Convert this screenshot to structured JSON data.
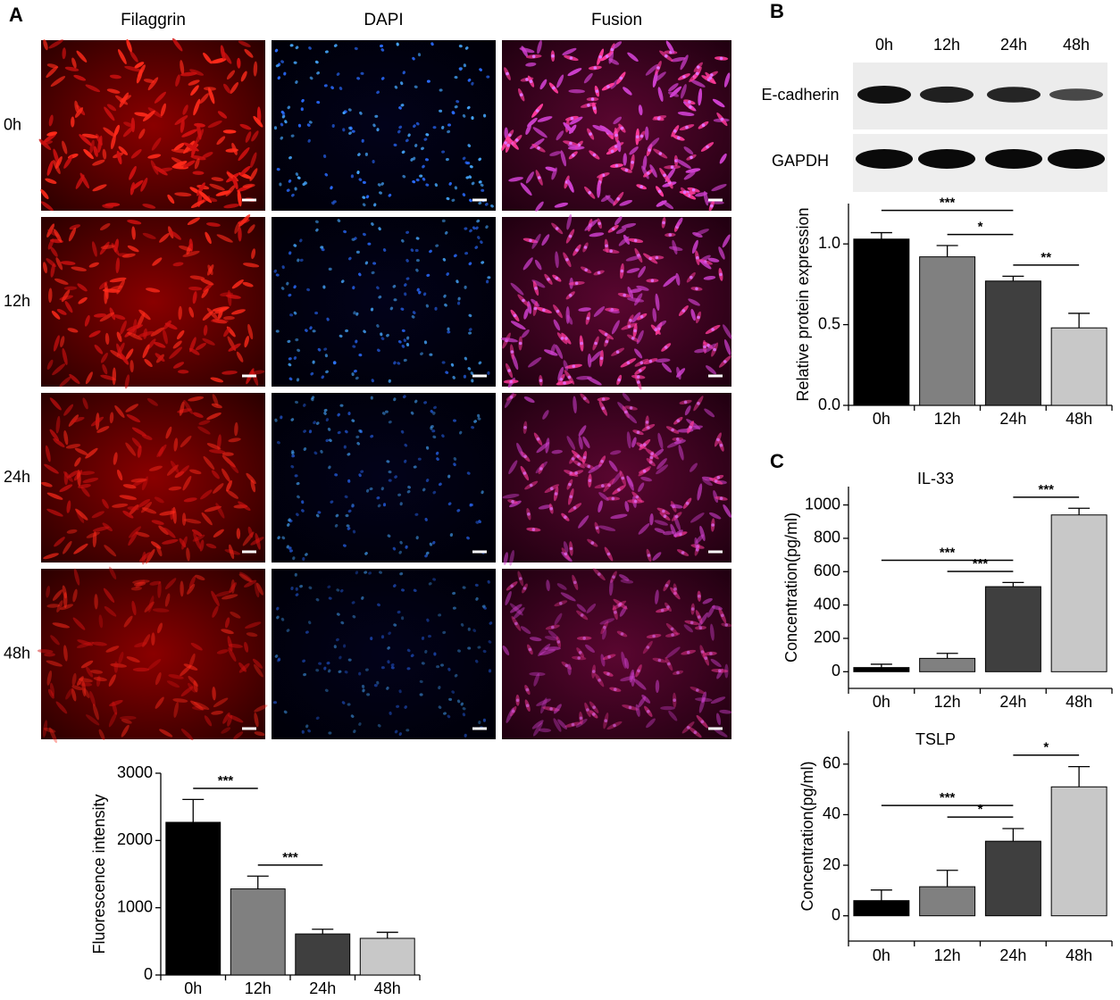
{
  "panel_labels": [
    "A",
    "B",
    "C"
  ],
  "micrographs": {
    "columns": [
      "Filaggrin",
      "DAPI",
      "Fusion"
    ],
    "rows": [
      "0h",
      "12h",
      "24h",
      "48h"
    ]
  },
  "blot": {
    "times": [
      "0h",
      "12h",
      "24h",
      "48h"
    ],
    "proteins": [
      "E-cadherin",
      "GAPDH"
    ]
  },
  "chart_data": [
    {
      "type": "bar",
      "y_label": "Fluorescence intensity",
      "categories": [
        "0h",
        "12h",
        "24h",
        "48h"
      ],
      "values": [
        2270,
        1280,
        610,
        545
      ],
      "errors": [
        340,
        190,
        70,
        90
      ],
      "colors": [
        "#000000",
        "#808080",
        "#3f3f3f",
        "#c8c8c8"
      ],
      "ylim": [
        0,
        3000
      ],
      "yticks": [
        0,
        1000,
        2000,
        3000
      ],
      "annotations": [
        {
          "text": "***",
          "from": "0h",
          "to": "12h"
        },
        {
          "text": "***",
          "from": "12h",
          "to": "24h"
        }
      ]
    },
    {
      "type": "bar",
      "y_label": "Relative protein expression",
      "categories": [
        "0h",
        "12h",
        "24h",
        "48h"
      ],
      "values": [
        1.03,
        0.92,
        0.77,
        0.48
      ],
      "errors": [
        0.04,
        0.07,
        0.03,
        0.09
      ],
      "colors": [
        "#000000",
        "#808080",
        "#3f3f3f",
        "#c8c8c8"
      ],
      "ylim": [
        0,
        1.25
      ],
      "yticks": [
        {
          "value": 0,
          "label": "0.0"
        },
        0.5,
        {
          "value": 1,
          "label": "1.0"
        }
      ],
      "annotations": [
        {
          "text": "***",
          "from": "0h",
          "to": "24h"
        },
        {
          "text": "*",
          "from": "12h",
          "to": "24h"
        },
        {
          "text": "**",
          "from": "24h",
          "to": "48h"
        }
      ]
    },
    {
      "type": "bar",
      "title": "IL-33",
      "y_label": "Concentration(pg/ml)",
      "categories": [
        "0h",
        "12h",
        "24h",
        "48h"
      ],
      "values": [
        25,
        80,
        510,
        940
      ],
      "errors": [
        20,
        30,
        25,
        40
      ],
      "colors": [
        "#000000",
        "#808080",
        "#3f3f3f",
        "#c8c8c8"
      ],
      "ylim": [
        -100,
        1110
      ],
      "yticks": [
        0,
        200,
        400,
        600,
        800,
        1000
      ],
      "annotations": [
        {
          "text": "***",
          "from": "0h",
          "to": "24h"
        },
        {
          "text": "***",
          "from": "12h",
          "to": "24h"
        },
        {
          "text": "***",
          "from": "24h",
          "to": "48h"
        }
      ]
    },
    {
      "type": "bar",
      "title": "TSLP",
      "y_label": "Concentration(pg/ml)",
      "categories": [
        "0h",
        "12h",
        "24h",
        "48h"
      ],
      "values": [
        6,
        11.5,
        29.5,
        51
      ],
      "errors": [
        4.2,
        6.5,
        5,
        8
      ],
      "colors": [
        "#000000",
        "#808080",
        "#3f3f3f",
        "#c8c8c8"
      ],
      "ylim": [
        -10,
        73
      ],
      "yticks": [
        0,
        20,
        40,
        60
      ],
      "annotations": [
        {
          "text": "***",
          "from": "0h",
          "to": "24h"
        },
        {
          "text": "*",
          "from": "12h",
          "to": "24h"
        },
        {
          "text": "*",
          "from": "24h",
          "to": "48h"
        }
      ]
    }
  ]
}
